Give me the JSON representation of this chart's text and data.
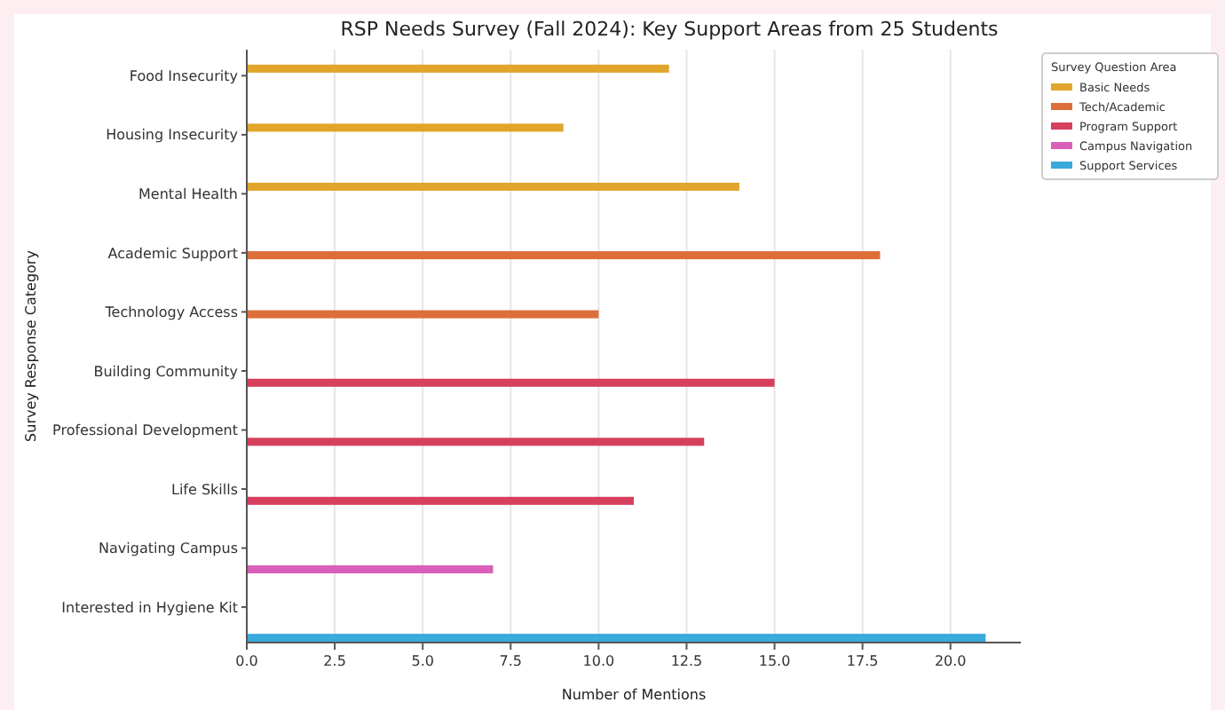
{
  "chart_data": {
    "type": "bar",
    "orientation": "horizontal",
    "title": "RSP Needs Survey (Fall 2024): Key Support Areas from 25 Students",
    "xlabel": "Number of Mentions",
    "ylabel": "Survey Response Category",
    "legend_title": "Survey Question Area",
    "legend": "top right",
    "grid": "x",
    "categories": [
      "Food Insecurity",
      "Housing Insecurity",
      "Mental Health",
      "Academic Support",
      "Technology Access",
      "Building Community",
      "Professional Development",
      "Life Skills",
      "Navigating Campus",
      "Interested in Hygiene Kit"
    ],
    "xlim": [
      0,
      22
    ],
    "xticks": [
      {
        "value": 0,
        "label": "0.0"
      },
      {
        "value": 2.5,
        "label": "2.5"
      },
      {
        "value": 5,
        "label": "5.0"
      },
      {
        "value": 7.5,
        "label": "7.5"
      },
      {
        "value": 10,
        "label": "10.0"
      },
      {
        "value": 12.5,
        "label": "12.5"
      },
      {
        "value": 15,
        "label": "15.0"
      },
      {
        "value": 17.5,
        "label": "17.5"
      },
      {
        "value": 20,
        "label": "20.0"
      }
    ],
    "series": [
      {
        "name": "Basic Needs",
        "color": "#e0a52a",
        "values": [
          12,
          9,
          14,
          null,
          null,
          null,
          null,
          null,
          null,
          null
        ]
      },
      {
        "name": "Tech/Academic",
        "color": "#dd6e3a",
        "values": [
          null,
          null,
          null,
          18,
          10,
          null,
          null,
          null,
          null,
          null
        ]
      },
      {
        "name": "Program Support",
        "color": "#d6405e",
        "values": [
          null,
          null,
          null,
          null,
          null,
          15,
          13,
          11,
          null,
          null
        ]
      },
      {
        "name": "Campus Navigation",
        "color": "#d95fb8",
        "values": [
          null,
          null,
          null,
          null,
          null,
          null,
          null,
          null,
          7,
          null
        ]
      },
      {
        "name": "Support Services",
        "color": "#3aa9dc",
        "values": [
          null,
          null,
          null,
          null,
          null,
          null,
          null,
          null,
          null,
          21
        ]
      }
    ]
  }
}
